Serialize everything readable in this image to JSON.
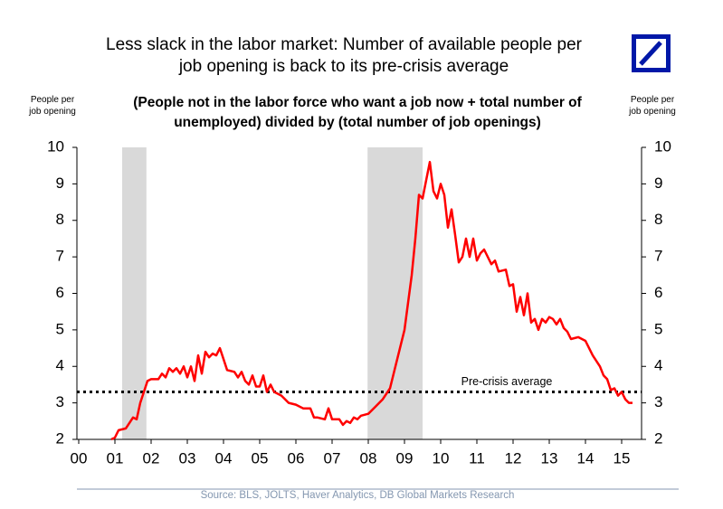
{
  "chart_data": {
    "type": "line",
    "title": "Less slack in the labor market: Number of available people per job opening is back to its pre-crisis average",
    "subtitle": "(People not in the labor force who want a job now + total number of unemployed) divided by (total number of job openings)",
    "y_label": "People per job opening",
    "source": "Source: BLS, JOLTS, Haver Analytics, DB Global Markets Research",
    "color": "#ff0000",
    "shade_color": "#d9d9d9",
    "shaded_regions": [
      [
        1.2,
        1.87
      ],
      [
        7.98,
        9.5
      ]
    ],
    "reference_line": {
      "value": 3.3,
      "label": "Pre-crisis average"
    },
    "xlim": [
      -0.05,
      15.55
    ],
    "xticks": [
      {
        "value": 0,
        "label": "00"
      },
      {
        "value": 1,
        "label": "01"
      },
      {
        "value": 2,
        "label": "02"
      },
      {
        "value": 3,
        "label": "03"
      },
      {
        "value": 4,
        "label": "04"
      },
      {
        "value": 5,
        "label": "05"
      },
      {
        "value": 6,
        "label": "06"
      },
      {
        "value": 7,
        "label": "07"
      },
      {
        "value": 8,
        "label": "08"
      },
      {
        "value": 9,
        "label": "09"
      },
      {
        "value": 10,
        "label": "10"
      },
      {
        "value": 11,
        "label": "11"
      },
      {
        "value": 12,
        "label": "12"
      },
      {
        "value": 13,
        "label": "13"
      },
      {
        "value": 14,
        "label": "14"
      },
      {
        "value": 15,
        "label": "15"
      }
    ],
    "ylim": [
      2,
      10
    ],
    "yticks": [
      2,
      3,
      4,
      5,
      6,
      7,
      8,
      9,
      10
    ],
    "x": [
      0.9,
      1.0,
      1.1,
      1.3,
      1.5,
      1.6,
      1.7,
      1.8,
      1.9,
      2.0,
      2.2,
      2.3,
      2.4,
      2.5,
      2.6,
      2.7,
      2.8,
      2.9,
      3.0,
      3.1,
      3.2,
      3.3,
      3.4,
      3.5,
      3.6,
      3.7,
      3.8,
      3.9,
      4.0,
      4.1,
      4.3,
      4.4,
      4.5,
      4.6,
      4.7,
      4.8,
      4.9,
      5.0,
      5.1,
      5.2,
      5.3,
      5.4,
      5.6,
      5.8,
      6.0,
      6.2,
      6.4,
      6.5,
      6.6,
      6.8,
      6.9,
      7.0,
      7.2,
      7.3,
      7.4,
      7.5,
      7.6,
      7.7,
      7.8,
      8.0,
      8.2,
      8.4,
      8.6,
      8.7,
      8.8,
      9.0,
      9.2,
      9.3,
      9.4,
      9.5,
      9.6,
      9.7,
      9.8,
      9.9,
      10.0,
      10.1,
      10.2,
      10.3,
      10.4,
      10.5,
      10.6,
      10.7,
      10.8,
      10.9,
      11.0,
      11.1,
      11.2,
      11.4,
      11.5,
      11.6,
      11.8,
      11.9,
      12.0,
      12.1,
      12.2,
      12.3,
      12.4,
      12.5,
      12.6,
      12.7,
      12.8,
      12.9,
      13.0,
      13.1,
      13.2,
      13.3,
      13.4,
      13.5,
      13.6,
      13.8,
      14.0,
      14.2,
      14.4,
      14.5,
      14.6,
      14.7,
      14.8,
      14.9,
      15.0,
      15.1,
      15.2,
      15.3
    ],
    "values": [
      2.0,
      2.05,
      2.25,
      2.3,
      2.6,
      2.55,
      3.0,
      3.3,
      3.6,
      3.65,
      3.65,
      3.8,
      3.7,
      3.95,
      3.85,
      3.95,
      3.8,
      4.0,
      3.7,
      4.0,
      3.6,
      4.3,
      3.8,
      4.4,
      4.25,
      4.35,
      4.3,
      4.5,
      4.2,
      3.9,
      3.85,
      3.7,
      3.85,
      3.6,
      3.5,
      3.75,
      3.45,
      3.45,
      3.75,
      3.3,
      3.5,
      3.3,
      3.2,
      3.0,
      2.95,
      2.85,
      2.85,
      2.6,
      2.6,
      2.55,
      2.85,
      2.55,
      2.55,
      2.4,
      2.5,
      2.45,
      2.6,
      2.55,
      2.65,
      2.7,
      2.9,
      3.1,
      3.4,
      3.8,
      4.2,
      5.0,
      6.5,
      7.5,
      8.7,
      8.6,
      9.1,
      9.6,
      8.8,
      8.6,
      9.0,
      8.7,
      7.8,
      8.3,
      7.6,
      6.85,
      7.0,
      7.5,
      7.0,
      7.5,
      6.9,
      7.1,
      7.2,
      6.8,
      6.9,
      6.6,
      6.65,
      6.2,
      6.25,
      5.5,
      5.9,
      5.4,
      6.0,
      5.2,
      5.3,
      5.0,
      5.3,
      5.2,
      5.35,
      5.3,
      5.15,
      5.3,
      5.05,
      4.95,
      4.75,
      4.8,
      4.7,
      4.3,
      4.0,
      3.75,
      3.65,
      3.35,
      3.4,
      3.2,
      3.3,
      3.1,
      3.0,
      3.0
    ]
  }
}
